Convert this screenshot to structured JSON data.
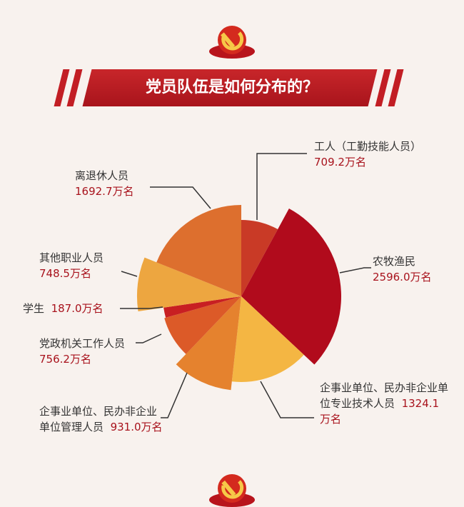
{
  "header": {
    "title": "党员队伍是如何分布的？"
  },
  "chart_data": {
    "type": "pie",
    "variant": "rose (variable radius)",
    "title": "党员队伍是如何分布的？",
    "unit": "万名",
    "categories": [
      "工人（工勤技能人员）",
      "农牧渔民",
      "企事业单位、民办非企业单位专业技术人员",
      "企事业单位、民办非企业单位管理人员",
      "党政机关工作人员",
      "学生",
      "其他职业人员",
      "离退休人员"
    ],
    "values": [
      709.2,
      2596.0,
      1324.1,
      931.0,
      756.2,
      187.0,
      748.5,
      1692.7
    ],
    "value_labels": [
      "709.2万名",
      "2596.0万名",
      "1324.1万名",
      "931.0万名",
      "756.2万名",
      "187.0万名",
      "748.5万名",
      "1692.7万名"
    ],
    "colors": [
      "#c93a26",
      "#b10b1c",
      "#f4b643",
      "#e5822e",
      "#dc5a28",
      "#c81f22",
      "#eda640",
      "#dd6f2e"
    ]
  }
}
